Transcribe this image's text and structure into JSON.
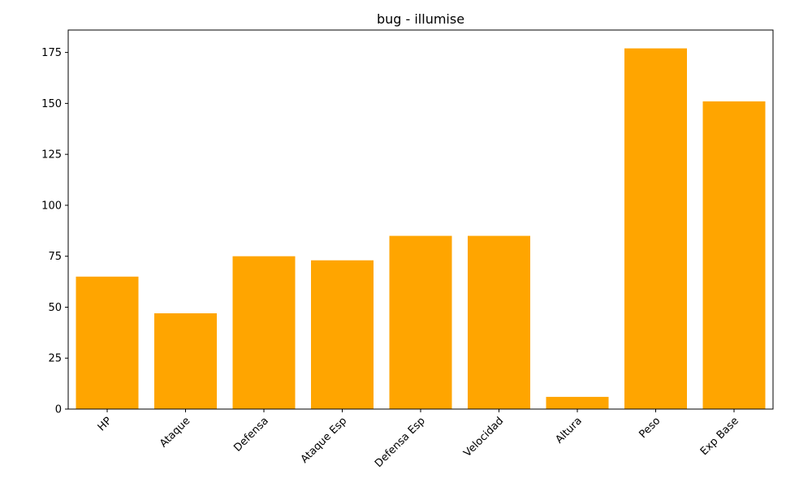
{
  "chart_data": {
    "type": "bar",
    "title": "bug - illumise",
    "xlabel": "",
    "ylabel": "",
    "categories": [
      "HP",
      "Ataque",
      "Defensa",
      "Ataque Esp",
      "Defensa Esp",
      "Velocidad",
      "Altura",
      "Peso",
      "Exp Base"
    ],
    "values": [
      65,
      47,
      75,
      73,
      85,
      85,
      6,
      177,
      151
    ],
    "ylim": [
      0,
      186
    ],
    "yticks": [
      0,
      25,
      50,
      75,
      100,
      125,
      150,
      175
    ],
    "x_tick_rotation_deg": 45,
    "bar_color": "#FFA500",
    "grid": false,
    "legend": "none"
  }
}
